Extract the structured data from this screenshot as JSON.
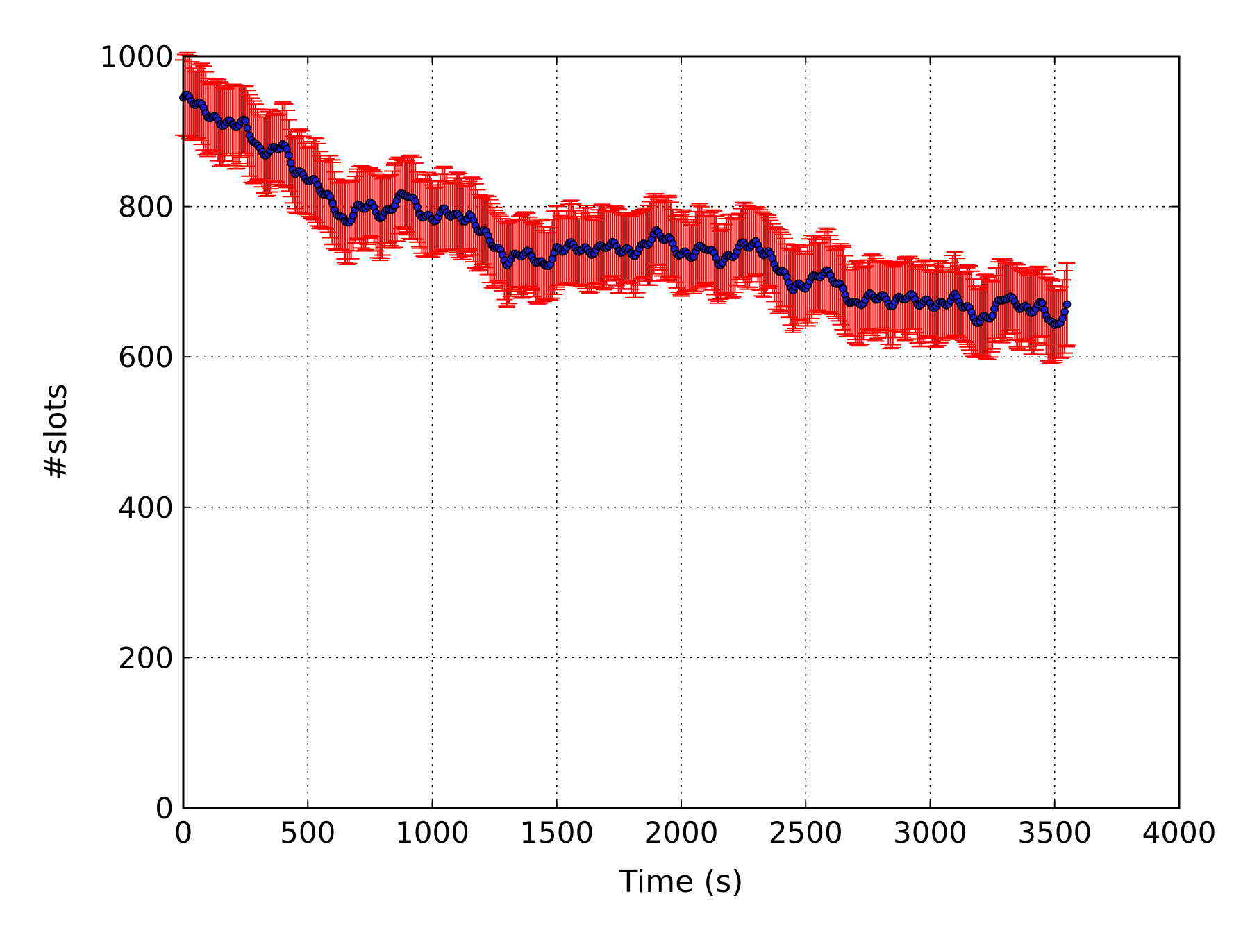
{
  "chart_data": {
    "type": "scatter",
    "xlabel": "Time (s)",
    "ylabel": "#slots",
    "xlim": [
      0,
      4000
    ],
    "ylim": [
      0,
      1000
    ],
    "xticks": [
      0,
      500,
      1000,
      1500,
      2000,
      2500,
      3000,
      3500,
      4000
    ],
    "yticks": [
      0,
      200,
      400,
      600,
      800,
      1000
    ],
    "xtick_labels": [
      "0",
      "500",
      "1000",
      "1500",
      "2000",
      "2500",
      "3000",
      "3500",
      "4000"
    ],
    "ytick_labels": [
      "0",
      "200",
      "400",
      "600",
      "800",
      "1000"
    ],
    "grid": true,
    "error_band_half_width": 50,
    "colors": {
      "marker": "#1f1fd6",
      "line": "#000000",
      "error": "#ff0000"
    },
    "series": [
      {
        "x": [
          0,
          50,
          100,
          150,
          200,
          250,
          300,
          350,
          400,
          450,
          500,
          550,
          600,
          650,
          700,
          750,
          800,
          850,
          900,
          950,
          1000,
          1050,
          1100,
          1150,
          1200,
          1250,
          1300,
          1350,
          1400,
          1450,
          1500,
          1550,
          1600,
          1650,
          1700,
          1750,
          1800,
          1850,
          1900,
          1950,
          2000,
          2050,
          2100,
          2150,
          2200,
          2250,
          2300,
          2350,
          2400,
          2450,
          2500,
          2550,
          2600,
          2650,
          2700,
          2750,
          2800,
          2850,
          2900,
          2950,
          3000,
          3050,
          3100,
          3150,
          3200,
          3250,
          3300,
          3350,
          3400,
          3450,
          3500,
          3550
        ],
        "y": [
          945,
          935,
          925,
          915,
          905,
          910,
          880,
          870,
          880,
          850,
          840,
          820,
          805,
          780,
          795,
          800,
          790,
          805,
          815,
          795,
          785,
          790,
          785,
          790,
          765,
          745,
          730,
          740,
          730,
          720,
          745,
          745,
          740,
          745,
          750,
          740,
          740,
          750,
          760,
          755,
          740,
          735,
          745,
          730,
          735,
          745,
          750,
          740,
          710,
          690,
          700,
          710,
          705,
          690,
          670,
          675,
          680,
          675,
          680,
          670,
          675,
          670,
          675,
          665,
          650,
          655,
          680,
          675,
          660,
          665,
          640,
          670
        ]
      }
    ]
  }
}
